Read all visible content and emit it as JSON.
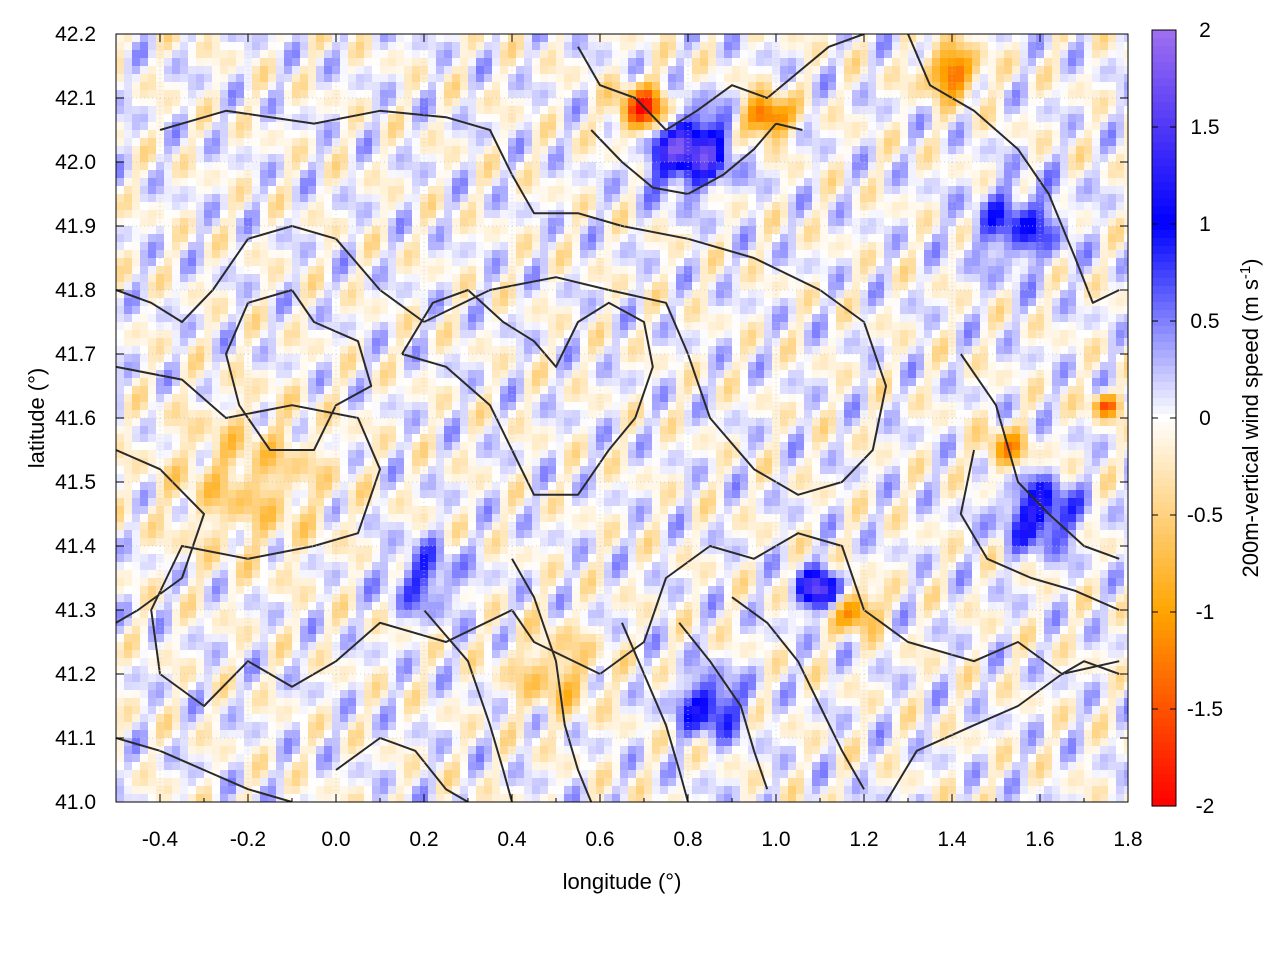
{
  "chart_data": {
    "type": "heatmap",
    "xlabel": "longitude (°)",
    "ylabel": "latitude (°)",
    "colorbar_label": "200m-vertical wind speed (m s",
    "colorbar_label_sup": "-1",
    "colorbar_label_end": ")",
    "xlim": [
      -0.5,
      1.8
    ],
    "ylim": [
      41.0,
      42.2
    ],
    "x_ticks": [
      {
        "value": -0.4,
        "label": "-0.4"
      },
      {
        "value": -0.2,
        "label": "-0.2"
      },
      {
        "value": 0.0,
        "label": "0.0"
      },
      {
        "value": 0.2,
        "label": "0.2"
      },
      {
        "value": 0.4,
        "label": "0.4"
      },
      {
        "value": 0.6,
        "label": "0.6"
      },
      {
        "value": 0.8,
        "label": "0.8"
      },
      {
        "value": 1.0,
        "label": "1.0"
      },
      {
        "value": 1.2,
        "label": "1.2"
      },
      {
        "value": 1.4,
        "label": "1.4"
      },
      {
        "value": 1.6,
        "label": "1.6"
      },
      {
        "value": 1.8,
        "label": "1.8"
      }
    ],
    "y_ticks": [
      {
        "value": 41.0,
        "label": "41.0"
      },
      {
        "value": 41.1,
        "label": "41.1"
      },
      {
        "value": 41.2,
        "label": "41.2"
      },
      {
        "value": 41.3,
        "label": "41.3"
      },
      {
        "value": 41.4,
        "label": "41.4"
      },
      {
        "value": 41.5,
        "label": "41.5"
      },
      {
        "value": 41.6,
        "label": "41.6"
      },
      {
        "value": 41.7,
        "label": "41.7"
      },
      {
        "value": 41.8,
        "label": "41.8"
      },
      {
        "value": 41.9,
        "label": "41.9"
      },
      {
        "value": 42.0,
        "label": "42.0"
      },
      {
        "value": 42.1,
        "label": "42.1"
      },
      {
        "value": 42.2,
        "label": "42.2"
      }
    ],
    "colorbar": {
      "range": [
        -2,
        2
      ],
      "ticks": [
        {
          "value": 2,
          "label": "2"
        },
        {
          "value": 1.5,
          "label": "1.5"
        },
        {
          "value": 1,
          "label": "1"
        },
        {
          "value": 0.5,
          "label": "0.5"
        },
        {
          "value": 0,
          "label": "0"
        },
        {
          "value": -0.5,
          "label": "-0.5"
        },
        {
          "value": -1,
          "label": "-1"
        },
        {
          "value": -1.5,
          "label": "-1.5"
        },
        {
          "value": -2,
          "label": "-2"
        }
      ],
      "stops": [
        {
          "value": -2,
          "color": "#ff0000"
        },
        {
          "value": -1,
          "color": "#ffa500"
        },
        {
          "value": 0,
          "color": "#ffffff"
        },
        {
          "value": 1,
          "color": "#0000ff"
        },
        {
          "value": 2,
          "color": "#a070f0"
        }
      ]
    },
    "grid": true,
    "field_features": [
      {
        "lon": 0.8,
        "lat": 42.02,
        "value": 1.7,
        "r": 0.09
      },
      {
        "lon": 0.7,
        "lat": 42.08,
        "value": -1.8,
        "r": 0.06
      },
      {
        "lon": 0.98,
        "lat": 42.07,
        "value": -1.7,
        "r": 0.05
      },
      {
        "lon": 1.4,
        "lat": 42.14,
        "value": -1.4,
        "r": 0.06
      },
      {
        "lon": 1.1,
        "lat": 41.33,
        "value": 1.6,
        "r": 0.05
      },
      {
        "lon": 1.18,
        "lat": 41.3,
        "value": -1.3,
        "r": 0.05
      },
      {
        "lon": 1.6,
        "lat": 41.45,
        "value": 1.2,
        "r": 0.08
      },
      {
        "lon": 1.52,
        "lat": 41.55,
        "value": -1.0,
        "r": 0.05
      },
      {
        "lon": 1.75,
        "lat": 41.62,
        "value": -1.5,
        "r": 0.03
      },
      {
        "lon": 0.85,
        "lat": 41.15,
        "value": 1.1,
        "r": 0.07
      },
      {
        "lon": -0.2,
        "lat": 41.5,
        "value": -0.5,
        "r": 0.18
      },
      {
        "lon": 0.5,
        "lat": 41.2,
        "value": -0.6,
        "r": 0.1
      },
      {
        "lon": 0.2,
        "lat": 41.35,
        "value": 0.7,
        "r": 0.08
      },
      {
        "lon": 1.55,
        "lat": 41.9,
        "value": 0.8,
        "r": 0.1
      }
    ],
    "contours": [
      {
        "points": [
          [
            -0.5,
            41.68
          ],
          [
            -0.35,
            41.66
          ],
          [
            -0.25,
            41.6
          ],
          [
            -0.1,
            41.62
          ],
          [
            0.05,
            41.6
          ],
          [
            0.1,
            41.52
          ],
          [
            0.05,
            41.42
          ],
          [
            -0.05,
            41.4
          ],
          [
            -0.2,
            41.38
          ],
          [
            -0.35,
            41.4
          ],
          [
            -0.42,
            41.3
          ],
          [
            -0.4,
            41.2
          ],
          [
            -0.3,
            41.15
          ],
          [
            -0.2,
            41.22
          ],
          [
            -0.1,
            41.18
          ],
          [
            0.0,
            41.22
          ],
          [
            0.1,
            41.28
          ],
          [
            0.25,
            41.25
          ],
          [
            0.4,
            41.3
          ],
          [
            0.45,
            41.25
          ],
          [
            0.6,
            41.2
          ],
          [
            0.7,
            41.25
          ],
          [
            0.75,
            41.35
          ],
          [
            0.85,
            41.4
          ],
          [
            0.95,
            41.38
          ],
          [
            1.05,
            41.42
          ],
          [
            1.15,
            41.4
          ],
          [
            1.2,
            41.3
          ],
          [
            1.3,
            41.25
          ],
          [
            1.45,
            41.22
          ],
          [
            1.55,
            41.25
          ],
          [
            1.65,
            41.2
          ],
          [
            1.7,
            41.22
          ],
          [
            1.78,
            41.2
          ]
        ]
      },
      {
        "points": [
          [
            -0.5,
            41.55
          ],
          [
            -0.4,
            41.52
          ],
          [
            -0.3,
            41.45
          ],
          [
            -0.35,
            41.35
          ],
          [
            -0.45,
            41.3
          ],
          [
            -0.5,
            41.28
          ]
        ]
      },
      {
        "points": [
          [
            -0.4,
            42.05
          ],
          [
            -0.25,
            42.08
          ],
          [
            -0.05,
            42.06
          ],
          [
            0.1,
            42.08
          ],
          [
            0.25,
            42.07
          ],
          [
            0.35,
            42.05
          ],
          [
            0.4,
            41.98
          ],
          [
            0.45,
            41.92
          ],
          [
            0.55,
            41.92
          ],
          [
            0.65,
            41.9
          ],
          [
            0.8,
            41.88
          ],
          [
            0.95,
            41.85
          ],
          [
            1.1,
            41.8
          ],
          [
            1.2,
            41.75
          ],
          [
            1.25,
            41.65
          ],
          [
            1.22,
            41.55
          ],
          [
            1.15,
            41.5
          ],
          [
            1.05,
            41.48
          ],
          [
            0.95,
            41.52
          ],
          [
            0.85,
            41.6
          ],
          [
            0.8,
            41.7
          ],
          [
            0.75,
            41.78
          ],
          [
            0.62,
            41.8
          ],
          [
            0.5,
            41.82
          ],
          [
            0.35,
            41.8
          ],
          [
            0.2,
            41.75
          ],
          [
            0.1,
            41.8
          ],
          [
            0.0,
            41.88
          ],
          [
            -0.1,
            41.9
          ],
          [
            -0.2,
            41.88
          ],
          [
            -0.28,
            41.8
          ],
          [
            -0.35,
            41.75
          ],
          [
            -0.42,
            41.78
          ],
          [
            -0.5,
            41.8
          ]
        ]
      },
      {
        "points": [
          [
            0.55,
            42.18
          ],
          [
            0.6,
            42.12
          ],
          [
            0.68,
            42.1
          ],
          [
            0.75,
            42.05
          ],
          [
            0.82,
            42.08
          ],
          [
            0.9,
            42.12
          ],
          [
            0.98,
            42.1
          ],
          [
            1.05,
            42.14
          ],
          [
            1.12,
            42.18
          ],
          [
            1.2,
            42.2
          ]
        ]
      },
      {
        "points": [
          [
            0.58,
            42.05
          ],
          [
            0.65,
            42.0
          ],
          [
            0.72,
            41.96
          ],
          [
            0.8,
            41.95
          ],
          [
            0.88,
            41.98
          ],
          [
            0.95,
            42.02
          ],
          [
            1.0,
            42.06
          ],
          [
            1.06,
            42.05
          ]
        ]
      },
      {
        "points": [
          [
            1.3,
            42.2
          ],
          [
            1.35,
            42.12
          ],
          [
            1.45,
            42.08
          ],
          [
            1.55,
            42.02
          ],
          [
            1.62,
            41.95
          ],
          [
            1.68,
            41.85
          ],
          [
            1.72,
            41.78
          ],
          [
            1.78,
            41.8
          ]
        ]
      },
      {
        "points": [
          [
            1.42,
            41.7
          ],
          [
            1.5,
            41.62
          ],
          [
            1.55,
            41.5
          ],
          [
            1.62,
            41.45
          ],
          [
            1.7,
            41.4
          ],
          [
            1.78,
            41.38
          ]
        ]
      },
      {
        "points": [
          [
            1.45,
            41.55
          ],
          [
            1.42,
            41.45
          ],
          [
            1.48,
            41.38
          ],
          [
            1.58,
            41.35
          ],
          [
            1.68,
            41.33
          ],
          [
            1.78,
            41.3
          ]
        ]
      },
      {
        "points": [
          [
            0.9,
            41.32
          ],
          [
            0.98,
            41.28
          ],
          [
            1.05,
            41.22
          ],
          [
            1.1,
            41.15
          ],
          [
            1.15,
            41.08
          ],
          [
            1.2,
            41.02
          ]
        ]
      },
      {
        "points": [
          [
            0.78,
            41.28
          ],
          [
            0.85,
            41.22
          ],
          [
            0.92,
            41.15
          ],
          [
            0.95,
            41.08
          ],
          [
            0.98,
            41.02
          ]
        ]
      },
      {
        "points": [
          [
            0.65,
            41.28
          ],
          [
            0.7,
            41.2
          ],
          [
            0.75,
            41.12
          ],
          [
            0.78,
            41.05
          ],
          [
            0.8,
            41.0
          ]
        ]
      },
      {
        "points": [
          [
            0.4,
            41.38
          ],
          [
            0.45,
            41.32
          ],
          [
            0.5,
            41.22
          ],
          [
            0.52,
            41.12
          ],
          [
            0.55,
            41.05
          ],
          [
            0.58,
            41.0
          ]
        ]
      },
      {
        "points": [
          [
            0.2,
            41.3
          ],
          [
            0.3,
            41.22
          ],
          [
            0.35,
            41.12
          ],
          [
            0.38,
            41.05
          ],
          [
            0.4,
            41.0
          ]
        ]
      },
      {
        "points": [
          [
            -0.5,
            41.1
          ],
          [
            -0.4,
            41.08
          ],
          [
            -0.3,
            41.05
          ],
          [
            -0.2,
            41.02
          ],
          [
            -0.1,
            41.0
          ]
        ]
      },
      {
        "points": [
          [
            0.0,
            41.05
          ],
          [
            0.1,
            41.1
          ],
          [
            0.18,
            41.08
          ],
          [
            0.25,
            41.02
          ],
          [
            0.3,
            41.0
          ]
        ]
      },
      {
        "points": [
          [
            1.25,
            41.0
          ],
          [
            1.32,
            41.08
          ],
          [
            1.45,
            41.12
          ],
          [
            1.55,
            41.15
          ],
          [
            1.65,
            41.2
          ],
          [
            1.78,
            41.22
          ]
        ]
      },
      {
        "points": [
          [
            0.15,
            41.7
          ],
          [
            0.25,
            41.68
          ],
          [
            0.35,
            41.62
          ],
          [
            0.4,
            41.55
          ],
          [
            0.45,
            41.48
          ],
          [
            0.55,
            41.48
          ],
          [
            0.62,
            41.55
          ],
          [
            0.68,
            41.6
          ],
          [
            0.72,
            41.68
          ],
          [
            0.7,
            41.75
          ],
          [
            0.62,
            41.78
          ],
          [
            0.55,
            41.75
          ],
          [
            0.5,
            41.68
          ],
          [
            0.45,
            41.72
          ],
          [
            0.38,
            41.75
          ],
          [
            0.3,
            41.8
          ],
          [
            0.22,
            41.78
          ],
          [
            0.15,
            41.7
          ]
        ]
      },
      {
        "points": [
          [
            -0.1,
            41.8
          ],
          [
            -0.05,
            41.75
          ],
          [
            0.05,
            41.72
          ],
          [
            0.08,
            41.65
          ],
          [
            0.0,
            41.62
          ],
          [
            -0.05,
            41.55
          ],
          [
            -0.15,
            41.55
          ],
          [
            -0.22,
            41.62
          ],
          [
            -0.25,
            41.7
          ],
          [
            -0.2,
            41.78
          ],
          [
            -0.1,
            41.8
          ]
        ]
      }
    ]
  }
}
